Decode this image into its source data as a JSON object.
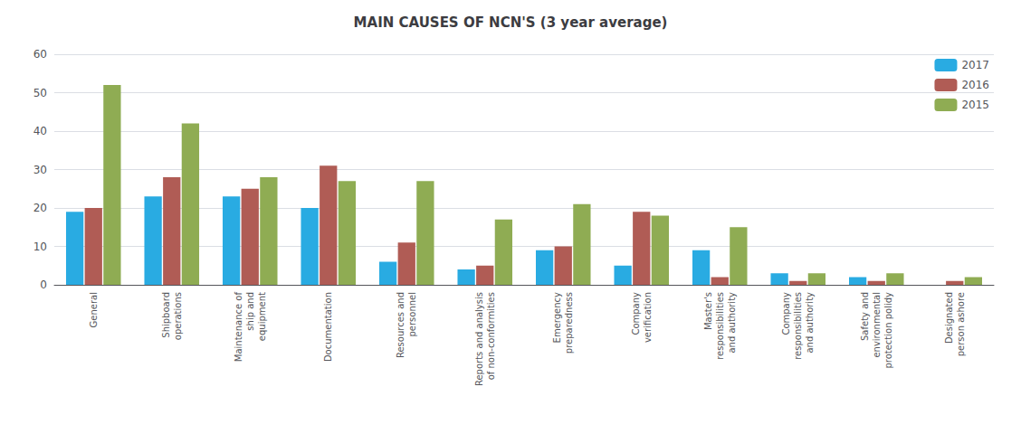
{
  "chart_data": {
    "type": "bar",
    "title": "MAIN CAUSES OF NCN'S (3 year average)",
    "categories": [
      "General",
      "Shipboard\noperations",
      "Maintenance of\nship and\nequipment",
      "Documentation",
      "Resources and\npersonnel",
      "Reports and analysis\nof non-conformities",
      "Emergency\npreparedness",
      "Company\nverification",
      "Master's\nresponsibilities\nand authority",
      "Company\nresponsibilities\nand authority",
      "Safety and\nenvironmental\nprotection polidy",
      "Designated\nperson ashore"
    ],
    "series": [
      {
        "name": "2017",
        "color": "#29abe2",
        "values": [
          19,
          23,
          23,
          20,
          6,
          4,
          9,
          5,
          9,
          3,
          2,
          0
        ]
      },
      {
        "name": "2016",
        "color": "#b05c55",
        "values": [
          20,
          28,
          25,
          31,
          11,
          5,
          10,
          19,
          2,
          1,
          1,
          1
        ]
      },
      {
        "name": "2015",
        "color": "#8fac53",
        "values": [
          52,
          42,
          28,
          27,
          27,
          17,
          21,
          18,
          15,
          3,
          3,
          2
        ]
      }
    ],
    "ylim": [
      0,
      60
    ],
    "yticks": [
      0,
      10,
      20,
      30,
      40,
      50,
      60
    ],
    "grid": true,
    "legend": "upper right"
  }
}
